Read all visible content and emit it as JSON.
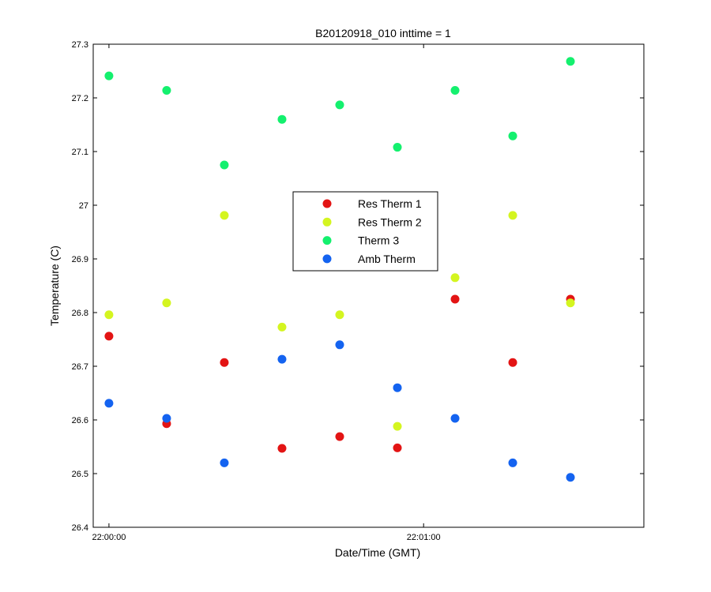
{
  "chart_data": {
    "type": "scatter",
    "title": "B20120918_010 inttime = 1",
    "xlabel": "Date/Time (GMT)",
    "ylabel": "Temperature (C)",
    "x_axis": {
      "type": "time",
      "range": [
        "21:59:57",
        "22:01:42"
      ],
      "ticks": [
        {
          "value": "22:00:00",
          "label": "22:00:00"
        },
        {
          "value": "22:01:00",
          "label": "22:01:00"
        }
      ]
    },
    "y_axis": {
      "range": [
        26.4,
        27.3
      ],
      "ticks": [
        {
          "value": 26.4,
          "label": "26.4"
        },
        {
          "value": 26.5,
          "label": "26.5"
        },
        {
          "value": 26.6,
          "label": "26.6"
        },
        {
          "value": 26.7,
          "label": "26.7"
        },
        {
          "value": 26.8,
          "label": "26.8"
        },
        {
          "value": 26.9,
          "label": "26.9"
        },
        {
          "value": 27.0,
          "label": "27"
        },
        {
          "value": 27.1,
          "label": "27.1"
        },
        {
          "value": 27.2,
          "label": "27.2"
        },
        {
          "value": 27.3,
          "label": "27.3"
        }
      ]
    },
    "grid": false,
    "legend": {
      "placement": "center"
    },
    "x": [
      "22:00:00",
      "22:00:11",
      "22:00:22",
      "22:00:33",
      "22:00:44",
      "22:00:55",
      "22:01:06",
      "22:01:17",
      "22:01:28"
    ],
    "series": [
      {
        "name": "Res Therm 1",
        "color": "#e31414",
        "values": [
          26.756,
          26.593,
          26.707,
          26.547,
          26.569,
          26.548,
          26.825,
          26.707,
          26.825
        ]
      },
      {
        "name": "Res Therm 2",
        "color": "#d4f520",
        "values": [
          26.796,
          26.818,
          26.981,
          26.773,
          26.796,
          26.588,
          26.865,
          26.981,
          26.818
        ]
      },
      {
        "name": "Therm 3",
        "color": "#14f06e",
        "values": [
          27.241,
          27.214,
          27.075,
          27.16,
          27.187,
          27.108,
          27.214,
          27.129,
          27.268
        ]
      },
      {
        "name": "Amb Therm",
        "color": "#1463f0",
        "values": [
          26.631,
          26.603,
          26.52,
          26.713,
          26.74,
          26.66,
          26.603,
          26.52,
          26.493
        ]
      }
    ]
  }
}
